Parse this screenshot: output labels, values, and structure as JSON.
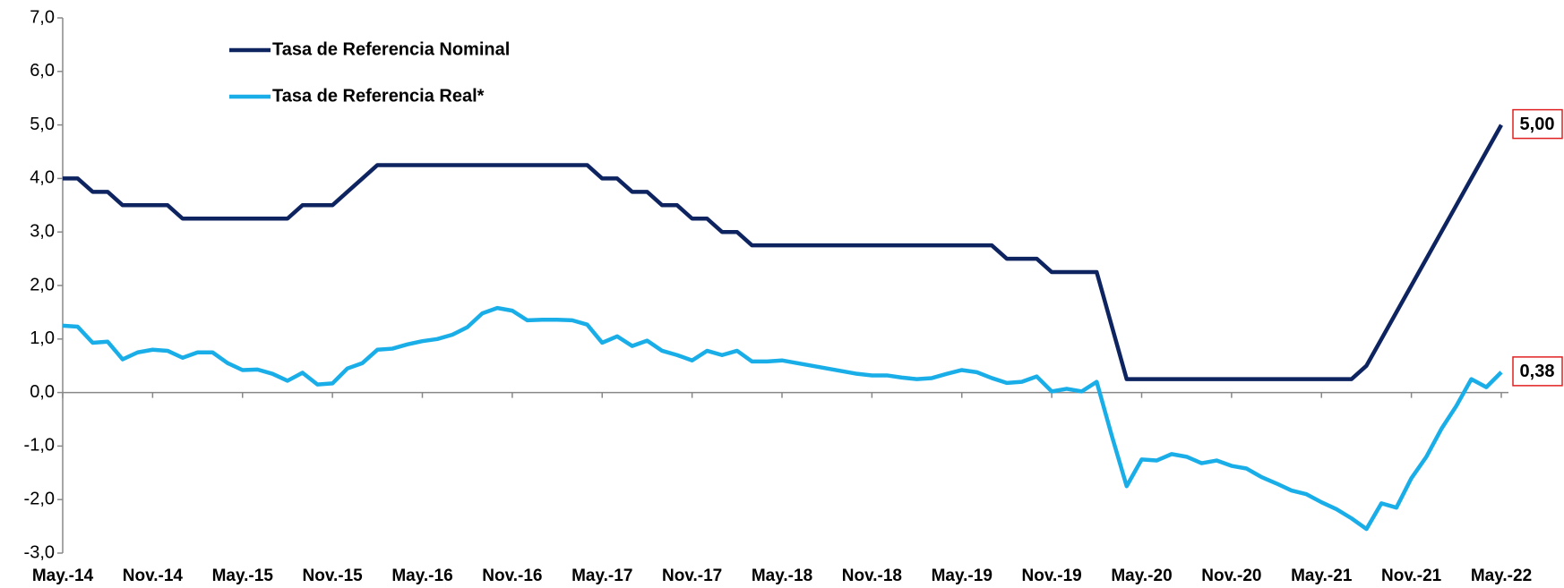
{
  "chart_data": {
    "type": "line",
    "categories": [
      "May.-14",
      null,
      null,
      null,
      null,
      null,
      "Nov.-14",
      null,
      null,
      null,
      null,
      null,
      "May.-15",
      null,
      null,
      null,
      null,
      null,
      "Nov.-15",
      null,
      null,
      null,
      null,
      null,
      "May.-16",
      null,
      null,
      null,
      null,
      null,
      "Nov.-16",
      null,
      null,
      null,
      null,
      null,
      "May.-17",
      null,
      null,
      null,
      null,
      null,
      "Nov.-17",
      null,
      null,
      null,
      null,
      null,
      "May.-18",
      null,
      null,
      null,
      null,
      null,
      "Nov.-18",
      null,
      null,
      null,
      null,
      null,
      "May.-19",
      null,
      null,
      null,
      null,
      null,
      "Nov.-19",
      null,
      null,
      null,
      null,
      null,
      "May.-20",
      null,
      null,
      null,
      null,
      null,
      "Nov.-20",
      null,
      null,
      null,
      null,
      null,
      "May.-21",
      null,
      null,
      null,
      null,
      null,
      "Nov.-21",
      null,
      null,
      null,
      null,
      null,
      "May.-22"
    ],
    "series": [
      {
        "name": "Tasa de Referencia Nominal",
        "color": "#0d2461",
        "values": [
          4.0,
          4.0,
          3.75,
          3.75,
          3.5,
          3.5,
          3.5,
          3.5,
          3.25,
          3.25,
          3.25,
          3.25,
          3.25,
          3.25,
          3.25,
          3.25,
          3.5,
          3.5,
          3.5,
          3.75,
          4.0,
          4.25,
          4.25,
          4.25,
          4.25,
          4.25,
          4.25,
          4.25,
          4.25,
          4.25,
          4.25,
          4.25,
          4.25,
          4.25,
          4.25,
          4.25,
          4.0,
          4.0,
          3.75,
          3.75,
          3.5,
          3.5,
          3.25,
          3.25,
          3.0,
          3.0,
          2.75,
          2.75,
          2.75,
          2.75,
          2.75,
          2.75,
          2.75,
          2.75,
          2.75,
          2.75,
          2.75,
          2.75,
          2.75,
          2.75,
          2.75,
          2.75,
          2.75,
          2.5,
          2.5,
          2.5,
          2.25,
          2.25,
          2.25,
          2.25,
          1.25,
          0.25,
          0.25,
          0.25,
          0.25,
          0.25,
          0.25,
          0.25,
          0.25,
          0.25,
          0.25,
          0.25,
          0.25,
          0.25,
          0.25,
          0.25,
          0.25,
          0.5,
          1.0,
          1.5,
          2.0,
          2.5,
          3.0,
          3.5,
          4.0,
          4.5,
          5.0
        ],
        "value_labels": [
          null,
          null,
          null,
          null,
          null,
          null,
          null,
          null,
          null,
          null,
          null,
          null,
          null,
          null,
          null,
          null,
          null,
          null,
          null,
          null,
          null,
          null,
          null,
          null,
          null,
          null,
          null,
          null,
          null,
          null,
          null,
          null,
          null,
          null,
          null,
          null,
          null,
          null,
          null,
          null,
          null,
          null,
          null,
          null,
          null,
          null,
          null,
          null,
          null,
          null,
          null,
          null,
          null,
          null,
          null,
          null,
          null,
          null,
          null,
          null,
          null,
          null,
          null,
          null,
          null,
          null,
          null,
          null,
          null,
          null,
          null,
          null,
          null,
          null,
          null,
          null,
          null,
          null,
          null,
          null,
          null,
          null,
          null,
          null,
          null,
          null,
          null,
          null,
          null,
          null,
          null,
          null,
          null,
          null,
          null,
          null,
          "5,00"
        ]
      },
      {
        "name": "Tasa de Referencia Real*",
        "color": "#1aaee8",
        "values": [
          1.25,
          1.23,
          0.93,
          0.95,
          0.62,
          0.75,
          0.8,
          0.78,
          0.65,
          0.75,
          0.75,
          0.55,
          0.42,
          0.43,
          0.35,
          0.22,
          0.37,
          0.15,
          0.17,
          0.45,
          0.55,
          0.8,
          0.82,
          0.9,
          0.96,
          1.0,
          1.08,
          1.22,
          1.48,
          1.58,
          1.53,
          1.35,
          1.36,
          1.36,
          1.35,
          1.27,
          0.93,
          1.05,
          0.87,
          0.97,
          0.78,
          0.7,
          0.6,
          0.78,
          0.7,
          0.78,
          0.58,
          0.58,
          0.6,
          0.55,
          0.5,
          0.45,
          0.4,
          0.35,
          0.32,
          0.32,
          0.28,
          0.25,
          0.27,
          0.35,
          0.42,
          0.38,
          0.27,
          0.18,
          0.2,
          0.3,
          0.02,
          0.07,
          0.02,
          0.2,
          -0.8,
          -1.75,
          -1.25,
          -1.27,
          -1.15,
          -1.2,
          -1.32,
          -1.27,
          -1.37,
          -1.42,
          -1.58,
          -1.7,
          -1.83,
          -1.9,
          -2.05,
          -2.18,
          -2.35,
          -2.55,
          -2.07,
          -2.15,
          -1.6,
          -1.2,
          -0.68,
          -0.25,
          0.25,
          0.1,
          0.38
        ],
        "value_labels": [
          null,
          null,
          null,
          null,
          null,
          null,
          null,
          null,
          null,
          null,
          null,
          null,
          null,
          null,
          null,
          null,
          null,
          null,
          null,
          null,
          null,
          null,
          null,
          null,
          null,
          null,
          null,
          null,
          null,
          null,
          null,
          null,
          null,
          null,
          null,
          null,
          null,
          null,
          null,
          null,
          null,
          null,
          null,
          null,
          null,
          null,
          null,
          null,
          null,
          null,
          null,
          null,
          null,
          null,
          null,
          null,
          null,
          null,
          null,
          null,
          null,
          null,
          null,
          null,
          null,
          null,
          null,
          null,
          null,
          null,
          null,
          null,
          null,
          null,
          null,
          null,
          null,
          null,
          null,
          null,
          null,
          null,
          null,
          null,
          null,
          null,
          null,
          null,
          null,
          null,
          null,
          null,
          null,
          null,
          null,
          null,
          "0,38"
        ]
      }
    ],
    "ylim": [
      -3,
      7
    ],
    "yticks": [
      {
        "value": -3,
        "label": "-3,0"
      },
      {
        "value": -2,
        "label": "-2,0"
      },
      {
        "value": -1,
        "label": "-1,0"
      },
      {
        "value": 0,
        "label": "0,0"
      },
      {
        "value": 1,
        "label": "1,0"
      },
      {
        "value": 2,
        "label": "2,0"
      },
      {
        "value": 3,
        "label": "3,0"
      },
      {
        "value": 4,
        "label": "4,0"
      },
      {
        "value": 5,
        "label": "5,0"
      },
      {
        "value": 6,
        "label": "6,0"
      },
      {
        "value": 7,
        "label": "7,0"
      }
    ],
    "grid": false
  }
}
